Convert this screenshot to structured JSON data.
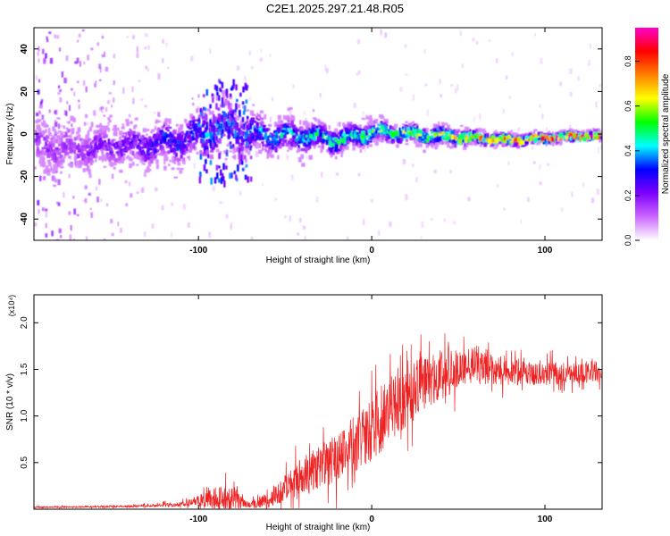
{
  "title": "C2E1.2025.297.21.48.R05",
  "chart_data": [
    {
      "type": "heatmap",
      "name": "spectrogram",
      "xlabel": "Height of straight line (km)",
      "ylabel": "Frequency (Hz)",
      "xlim": [
        -195,
        133
      ],
      "ylim": [
        -50,
        50
      ],
      "xticks": [
        -100,
        0,
        100
      ],
      "xtick_labels": [
        "-100",
        "0",
        "100"
      ],
      "yticks": [
        -40,
        -20,
        0,
        20,
        40
      ],
      "ytick_labels": [
        "-40",
        "-20",
        "0",
        "20",
        "40"
      ],
      "colorbar": {
        "label": "Normalized spectral amplitude",
        "range": [
          0,
          0.95
        ],
        "ticks": [
          0.0,
          0.2,
          0.4,
          0.6,
          0.8
        ],
        "tick_labels": [
          "0.0",
          "0.2",
          "0.4",
          "0.6",
          "0.8"
        ],
        "colors": [
          "#ffffff",
          "#cc66ff",
          "#7f00ff",
          "#0000ff",
          "#00ffff",
          "#00ff00",
          "#ffff00",
          "#ff8000",
          "#ff0000",
          "#ff00cc"
        ]
      },
      "ridge": {
        "x": [
          -195,
          -170,
          -150,
          -130,
          -110,
          -95,
          -85,
          -78,
          -60,
          -40,
          -20,
          0,
          20,
          40,
          60,
          80,
          100,
          120,
          133
        ],
        "center_hz": [
          -5,
          -6,
          -5,
          -4,
          -2,
          2,
          5,
          2,
          0,
          0,
          -2,
          2,
          1,
          0,
          -1,
          -2,
          -1,
          0,
          0
        ],
        "spread_hz": [
          12,
          10,
          9,
          9,
          10,
          12,
          12,
          10,
          8,
          7,
          6,
          5,
          4,
          4,
          3,
          2.5,
          2,
          2,
          2
        ],
        "peak_amplitude": [
          0.18,
          0.2,
          0.25,
          0.3,
          0.35,
          0.4,
          0.38,
          0.35,
          0.4,
          0.45,
          0.5,
          0.55,
          0.6,
          0.65,
          0.75,
          0.85,
          0.9,
          0.9,
          0.9
        ]
      }
    },
    {
      "type": "line",
      "name": "snr",
      "xlabel": "Height of straight line (km)",
      "ylabel": "SNR (10 * v/v)",
      "y_multiplier": "(x10⁴)",
      "xlim": [
        -195,
        133
      ],
      "ylim": [
        0,
        2.3
      ],
      "xticks": [
        -100,
        0,
        100
      ],
      "xtick_labels": [
        "-100",
        "0",
        "100"
      ],
      "yticks": [
        0.5,
        1.0,
        1.5,
        2.0
      ],
      "ytick_labels": [
        "0.5",
        "1.0",
        "1.5",
        "2.0"
      ],
      "color": "#ee2222",
      "envelope_x": [
        -195,
        -140,
        -110,
        -100,
        -90,
        -80,
        -75,
        -70,
        -60,
        -50,
        -40,
        -30,
        -20,
        -10,
        0,
        10,
        20,
        30,
        40,
        50,
        60,
        70,
        80,
        90,
        100,
        110,
        120,
        133
      ],
      "envelope_mean": [
        0.02,
        0.03,
        0.05,
        0.09,
        0.12,
        0.12,
        0.07,
        0.05,
        0.1,
        0.22,
        0.35,
        0.45,
        0.55,
        0.7,
        0.85,
        1.05,
        1.2,
        1.35,
        1.45,
        1.5,
        1.55,
        1.52,
        1.48,
        1.45,
        1.45,
        1.45,
        1.47,
        1.48
      ],
      "envelope_noise": [
        0.01,
        0.02,
        0.04,
        0.1,
        0.2,
        0.28,
        0.1,
        0.05,
        0.15,
        0.25,
        0.35,
        0.4,
        0.45,
        0.5,
        0.55,
        0.6,
        0.55,
        0.5,
        0.45,
        0.4,
        0.35,
        0.3,
        0.25,
        0.2,
        0.2,
        0.2,
        0.2,
        0.2
      ]
    }
  ]
}
